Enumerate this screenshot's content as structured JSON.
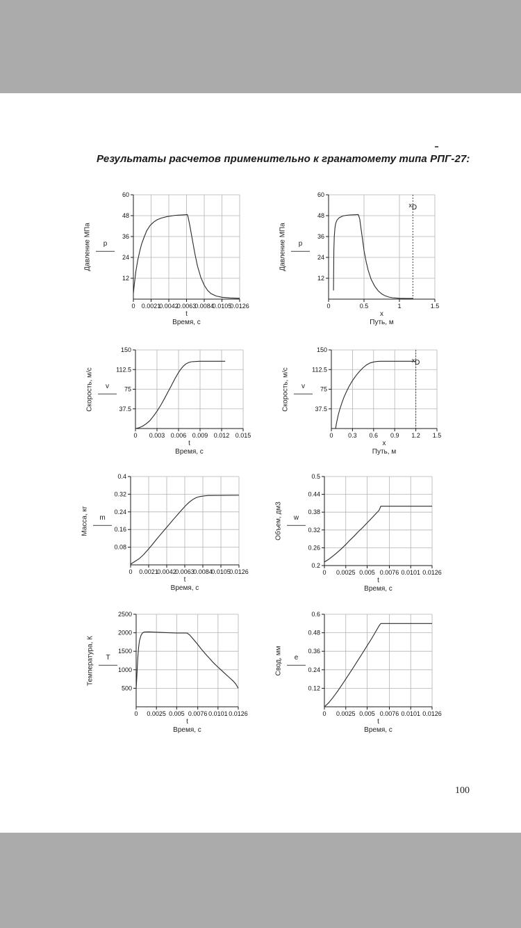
{
  "page": {
    "title": "Результаты расчетов применительно к гранатомету типа РПГ-27:",
    "page_number": "100"
  },
  "colors": {
    "band": "#ababab",
    "grid": "#b3b3b3",
    "axis": "#1a1a1a",
    "curve": "#2a2a2a"
  },
  "chart_data": [
    {
      "type": "line",
      "ylabel": "Давление МПа",
      "var_label": "p",
      "xvar": "t",
      "xlabel": "Время, с",
      "ylim": [
        0,
        60
      ],
      "yticks": [
        12,
        24,
        36,
        48,
        60
      ],
      "ytick_labels": [
        "12",
        "24",
        "36",
        "48",
        "60"
      ],
      "xlim": [
        0,
        0.0126
      ],
      "xticks": [
        0,
        0.0021,
        0.0042,
        0.0063,
        0.0084,
        0.0105,
        0.0126
      ],
      "xtick_labels": [
        "0",
        "0.0021",
        "0.0042",
        "0.0063",
        "0.0084",
        "0.0105",
        "0.0126"
      ],
      "grid": true,
      "marker": null,
      "points": [
        [
          0,
          3
        ],
        [
          0.0001,
          8
        ],
        [
          0.0003,
          16
        ],
        [
          0.0005,
          22
        ],
        [
          0.0008,
          28.5
        ],
        [
          0.001,
          32
        ],
        [
          0.0013,
          36
        ],
        [
          0.0016,
          39.5
        ],
        [
          0.002,
          42.5
        ],
        [
          0.0024,
          44.3
        ],
        [
          0.0028,
          45.6
        ],
        [
          0.0033,
          46.6
        ],
        [
          0.004,
          47.5
        ],
        [
          0.005,
          48.2
        ],
        [
          0.006,
          48.5
        ],
        [
          0.0064,
          48.6
        ],
        [
          0.0065,
          47
        ],
        [
          0.0067,
          42
        ],
        [
          0.007,
          34
        ],
        [
          0.0073,
          26
        ],
        [
          0.0076,
          19
        ],
        [
          0.008,
          12.5
        ],
        [
          0.0084,
          8
        ],
        [
          0.0088,
          5
        ],
        [
          0.0092,
          3.2
        ],
        [
          0.0098,
          1.8
        ],
        [
          0.0105,
          1.1
        ],
        [
          0.0115,
          0.7
        ],
        [
          0.0126,
          0.5
        ]
      ]
    },
    {
      "type": "line",
      "ylabel": "Давление МПа",
      "var_label": "p",
      "xvar": "x",
      "xlabel": "Путь, м",
      "ylim": [
        0,
        60
      ],
      "yticks": [
        12,
        24,
        36,
        48,
        60
      ],
      "ytick_labels": [
        "12",
        "24",
        "36",
        "48",
        "60"
      ],
      "xlim": [
        0,
        1.5
      ],
      "xticks": [
        0,
        0.5,
        1,
        1.5
      ],
      "xtick_labels": [
        "0",
        "0.5",
        "1",
        "1.5"
      ],
      "grid": true,
      "marker": {
        "x": 1.19,
        "label_main": "x",
        "label_sub": "D"
      },
      "points": [
        [
          0.07,
          5
        ],
        [
          0.072,
          15
        ],
        [
          0.075,
          28
        ],
        [
          0.08,
          36
        ],
        [
          0.09,
          41
        ],
        [
          0.1,
          43.5
        ],
        [
          0.12,
          45.5
        ],
        [
          0.15,
          46.8
        ],
        [
          0.2,
          47.8
        ],
        [
          0.25,
          48.2
        ],
        [
          0.3,
          48.4
        ],
        [
          0.35,
          48.5
        ],
        [
          0.42,
          48.6
        ],
        [
          0.44,
          46
        ],
        [
          0.46,
          40
        ],
        [
          0.48,
          34
        ],
        [
          0.5,
          28
        ],
        [
          0.53,
          21.5
        ],
        [
          0.56,
          16.5
        ],
        [
          0.6,
          11.5
        ],
        [
          0.65,
          7.5
        ],
        [
          0.7,
          4.8
        ],
        [
          0.75,
          3
        ],
        [
          0.8,
          1.9
        ],
        [
          0.85,
          1.2
        ],
        [
          0.9,
          0.8
        ],
        [
          1.0,
          0.5
        ],
        [
          1.1,
          0.4
        ],
        [
          1.19,
          0.35
        ]
      ]
    },
    {
      "type": "line",
      "ylabel": "Скорость, м/с",
      "var_label": "v",
      "xvar": "t",
      "xlabel": "Время, с",
      "ylim": [
        0,
        150
      ],
      "yticks": [
        37.5,
        75,
        112.5,
        150
      ],
      "ytick_labels": [
        "37.5",
        "75",
        "112.5",
        "150"
      ],
      "xlim": [
        0,
        0.015
      ],
      "xticks": [
        0,
        0.003,
        0.006,
        0.009,
        0.012,
        0.015
      ],
      "xtick_labels": [
        "0",
        "0.003",
        "0.006",
        "0.009",
        "0.012",
        "0.015"
      ],
      "grid": true,
      "marker": null,
      "points": [
        [
          0,
          0
        ],
        [
          0.0005,
          1.5
        ],
        [
          0.001,
          4.5
        ],
        [
          0.0015,
          9
        ],
        [
          0.002,
          15
        ],
        [
          0.0025,
          23.5
        ],
        [
          0.003,
          33
        ],
        [
          0.0035,
          44
        ],
        [
          0.004,
          56
        ],
        [
          0.0045,
          69
        ],
        [
          0.005,
          82
        ],
        [
          0.0055,
          95
        ],
        [
          0.006,
          107
        ],
        [
          0.0063,
          113
        ],
        [
          0.0066,
          118
        ],
        [
          0.007,
          123
        ],
        [
          0.0074,
          126
        ],
        [
          0.0078,
          127.5
        ],
        [
          0.0085,
          128
        ],
        [
          0.009,
          128.3
        ],
        [
          0.0125,
          128.3
        ]
      ]
    },
    {
      "type": "line",
      "ylabel": "Скорость, м/с",
      "var_label": "v",
      "xvar": "x",
      "xlabel": "Путь, м",
      "ylim": [
        0,
        150
      ],
      "yticks": [
        37.5,
        75,
        112.5,
        150
      ],
      "ytick_labels": [
        "37.5",
        "75",
        "112.5",
        "150"
      ],
      "xlim": [
        0,
        1.5
      ],
      "xticks": [
        0,
        0.3,
        0.6,
        0.9,
        1.2,
        1.5
      ],
      "xtick_labels": [
        "0",
        "0.3",
        "0.6",
        "0.9",
        "1.2",
        "1.5"
      ],
      "grid": true,
      "marker": {
        "x": 1.2,
        "label_main": "x",
        "label_sub": "D"
      },
      "points": [
        [
          0.06,
          0
        ],
        [
          0.07,
          8
        ],
        [
          0.08,
          15
        ],
        [
          0.09,
          21
        ],
        [
          0.1,
          27
        ],
        [
          0.12,
          37
        ],
        [
          0.15,
          49
        ],
        [
          0.18,
          60
        ],
        [
          0.21,
          69
        ],
        [
          0.25,
          80
        ],
        [
          0.3,
          91.5
        ],
        [
          0.35,
          101
        ],
        [
          0.4,
          109
        ],
        [
          0.45,
          116
        ],
        [
          0.5,
          121.5
        ],
        [
          0.55,
          125
        ],
        [
          0.6,
          127
        ],
        [
          0.65,
          128
        ],
        [
          0.7,
          128.3
        ],
        [
          1.2,
          128.3
        ]
      ]
    },
    {
      "type": "line",
      "ylabel": "Масса, кг",
      "var_label": "m",
      "xvar": "t",
      "xlabel": "Время, с",
      "ylim": [
        0,
        0.4
      ],
      "yticks": [
        0.08,
        0.16,
        0.24,
        0.32,
        0.4
      ],
      "ytick_labels": [
        "0.08",
        "0.16",
        "0.24",
        "0.32",
        "0.4"
      ],
      "xlim": [
        0,
        0.0126
      ],
      "xticks": [
        0,
        0.0021,
        0.0042,
        0.0063,
        0.0084,
        0.0105,
        0.0126
      ],
      "xtick_labels": [
        "0",
        "0.0021",
        "0.0042",
        "0.0063",
        "0.0084",
        "0.0105",
        "0.0126"
      ],
      "grid": true,
      "marker": null,
      "points": [
        [
          0,
          0.003
        ],
        [
          0.001,
          0.028
        ],
        [
          0.0015,
          0.046
        ],
        [
          0.002,
          0.068
        ],
        [
          0.0025,
          0.091
        ],
        [
          0.003,
          0.115
        ],
        [
          0.0035,
          0.138
        ],
        [
          0.004,
          0.161
        ],
        [
          0.0045,
          0.184
        ],
        [
          0.005,
          0.207
        ],
        [
          0.0055,
          0.229
        ],
        [
          0.006,
          0.251
        ],
        [
          0.0064,
          0.268
        ],
        [
          0.0068,
          0.283
        ],
        [
          0.0072,
          0.295
        ],
        [
          0.0076,
          0.304
        ],
        [
          0.008,
          0.309
        ],
        [
          0.0085,
          0.312
        ],
        [
          0.009,
          0.314
        ],
        [
          0.0126,
          0.315
        ]
      ]
    },
    {
      "type": "line",
      "ylabel": "Объем, дм3",
      "var_label": "w",
      "xvar": "t",
      "xlabel": "Время, с",
      "ylim": [
        0.2,
        0.5
      ],
      "yticks": [
        0.2,
        0.26,
        0.32,
        0.38,
        0.44,
        0.5
      ],
      "ytick_labels": [
        "0.2",
        "0.26",
        "0.32",
        "0.38",
        "0.44",
        "0.5"
      ],
      "xlim": [
        0,
        0.0126
      ],
      "xticks": [
        0,
        0.0025,
        0.005,
        0.0076,
        0.0101,
        0.0126
      ],
      "xtick_labels": [
        "0",
        "0.0025",
        "0.005",
        "0.0076",
        "0.0101",
        "0.0126"
      ],
      "grid": true,
      "marker": null,
      "points": [
        [
          0,
          0.212
        ],
        [
          0.0005,
          0.221
        ],
        [
          0.001,
          0.232
        ],
        [
          0.0015,
          0.244
        ],
        [
          0.002,
          0.257
        ],
        [
          0.0025,
          0.271
        ],
        [
          0.003,
          0.286
        ],
        [
          0.0035,
          0.3
        ],
        [
          0.004,
          0.315
        ],
        [
          0.0045,
          0.329
        ],
        [
          0.005,
          0.344
        ],
        [
          0.0055,
          0.359
        ],
        [
          0.006,
          0.374
        ],
        [
          0.0064,
          0.386
        ],
        [
          0.0066,
          0.4
        ],
        [
          0.007,
          0.4
        ],
        [
          0.0126,
          0.4
        ]
      ]
    },
    {
      "type": "line",
      "ylabel": "Температура, К",
      "var_label": "T",
      "xvar": "t",
      "xlabel": "Время, с",
      "ylim": [
        0,
        2500
      ],
      "yticks": [
        500,
        1000,
        1500,
        2000,
        2500
      ],
      "ytick_labels": [
        "500",
        "1000",
        "1500",
        "2000",
        "2500"
      ],
      "xlim": [
        0,
        0.0126
      ],
      "xticks": [
        0,
        0.0025,
        0.005,
        0.0076,
        0.0101,
        0.0126
      ],
      "xtick_labels": [
        "0",
        "0.0025",
        "0.005",
        "0.0076",
        "0.0101",
        "0.0126"
      ],
      "grid": true,
      "marker": null,
      "points": [
        [
          0,
          480
        ],
        [
          0.0001,
          900
        ],
        [
          0.0002,
          1300
        ],
        [
          0.0003,
          1600
        ],
        [
          0.0004,
          1780
        ],
        [
          0.0006,
          1930
        ],
        [
          0.0008,
          2000
        ],
        [
          0.001,
          2020
        ],
        [
          0.0015,
          2025
        ],
        [
          0.002,
          2020
        ],
        [
          0.003,
          2010
        ],
        [
          0.004,
          2000
        ],
        [
          0.005,
          1995
        ],
        [
          0.006,
          1995
        ],
        [
          0.0063,
          1990
        ],
        [
          0.0066,
          1940
        ],
        [
          0.007,
          1840
        ],
        [
          0.0075,
          1710
        ],
        [
          0.008,
          1570
        ],
        [
          0.0085,
          1440
        ],
        [
          0.009,
          1320
        ],
        [
          0.0095,
          1200
        ],
        [
          0.01,
          1090
        ],
        [
          0.0105,
          990
        ],
        [
          0.011,
          890
        ],
        [
          0.0115,
          790
        ],
        [
          0.012,
          690
        ],
        [
          0.0123,
          610
        ],
        [
          0.0126,
          500
        ]
      ]
    },
    {
      "type": "line",
      "ylabel": "Свод, мм",
      "var_label": "e",
      "xvar": "t",
      "xlabel": "Время, с",
      "ylim": [
        0,
        0.6
      ],
      "yticks": [
        0.12,
        0.24,
        0.36,
        0.48,
        0.6
      ],
      "ytick_labels": [
        "0.12",
        "0.24",
        "0.36",
        "0.48",
        "0.6"
      ],
      "xlim": [
        0,
        0.0126
      ],
      "xticks": [
        0,
        0.0025,
        0.005,
        0.0076,
        0.0101,
        0.0126
      ],
      "xtick_labels": [
        "0",
        "0.0025",
        "0.005",
        "0.0076",
        "0.0101",
        "0.0126"
      ],
      "grid": true,
      "marker": null,
      "points": [
        [
          0,
          0
        ],
        [
          0.0005,
          0.026
        ],
        [
          0.001,
          0.06
        ],
        [
          0.0015,
          0.098
        ],
        [
          0.002,
          0.138
        ],
        [
          0.0025,
          0.18
        ],
        [
          0.003,
          0.222
        ],
        [
          0.0035,
          0.265
        ],
        [
          0.004,
          0.308
        ],
        [
          0.0045,
          0.352
        ],
        [
          0.005,
          0.396
        ],
        [
          0.0055,
          0.44
        ],
        [
          0.006,
          0.487
        ],
        [
          0.0064,
          0.525
        ],
        [
          0.0066,
          0.54
        ],
        [
          0.007,
          0.54
        ],
        [
          0.0126,
          0.54
        ]
      ]
    }
  ]
}
